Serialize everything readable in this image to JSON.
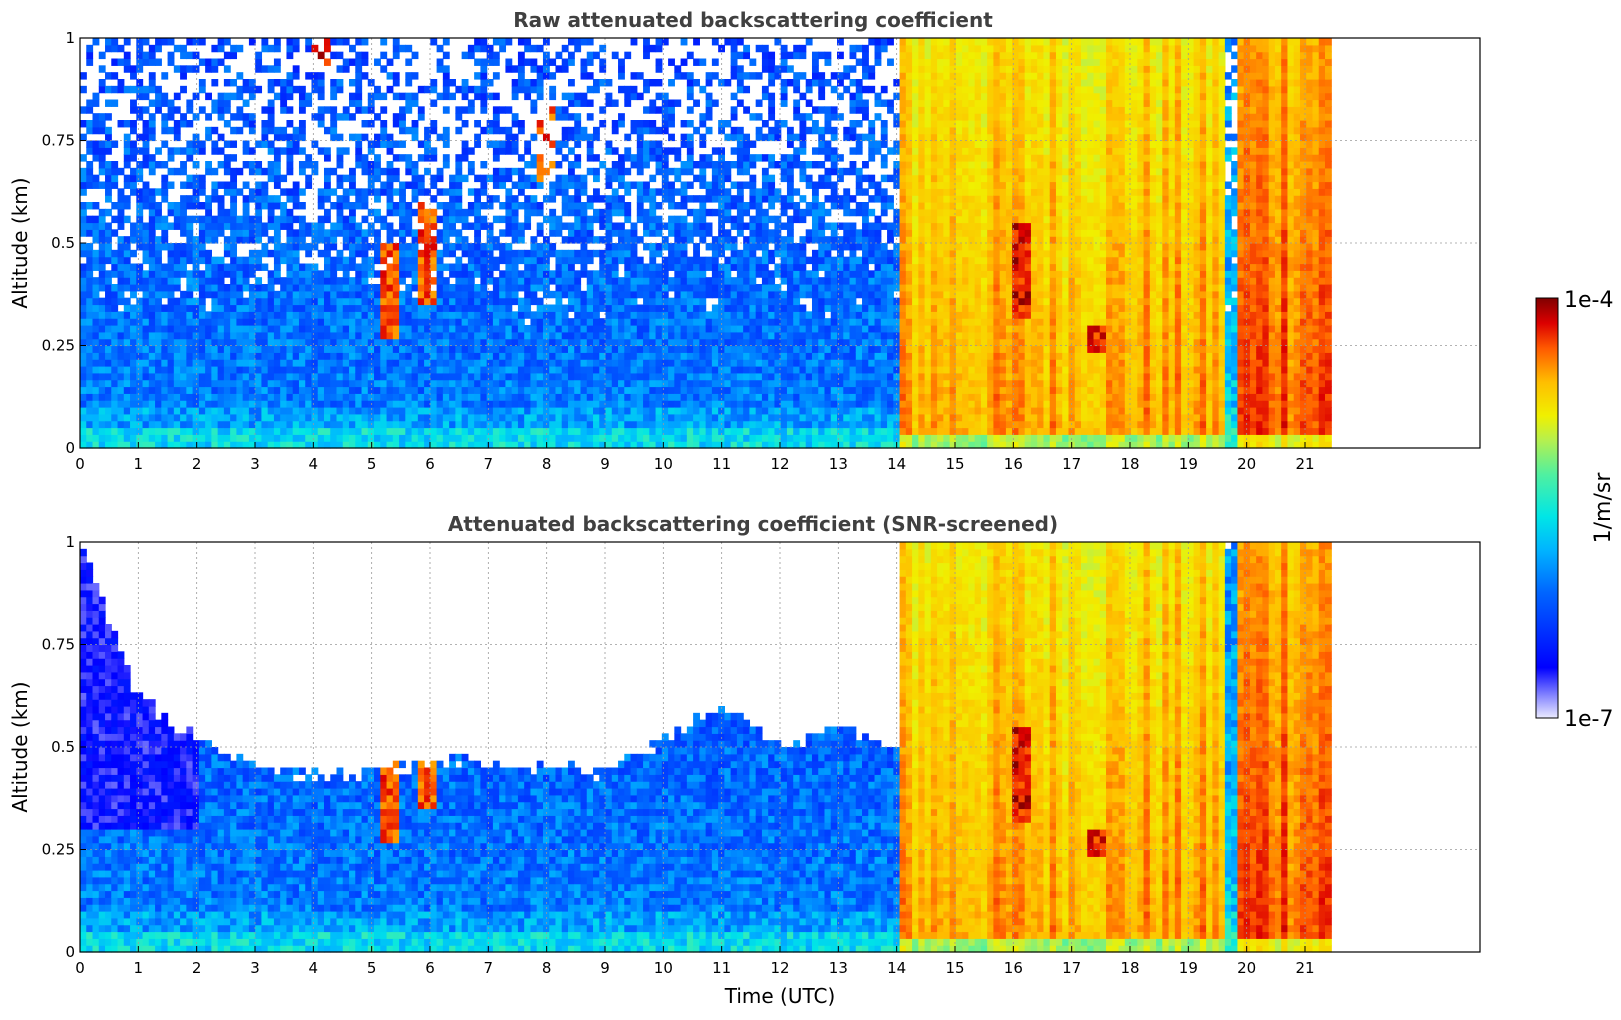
{
  "chart_data": [
    {
      "type": "heatmap",
      "title": "Raw attenuated backscattering coefficient",
      "xlabel": "",
      "ylabel": "Altitude (km)",
      "xlim": [
        0,
        24
      ],
      "ylim": [
        0,
        1
      ],
      "x_ticks": [
        "0",
        "1",
        "2",
        "3",
        "4",
        "5",
        "6",
        "7",
        "8",
        "9",
        "10",
        "11",
        "12",
        "13",
        "14",
        "15",
        "16",
        "17",
        "18",
        "19",
        "20",
        "21"
      ],
      "y_ticks": [
        "0",
        "0.25",
        "0.5",
        "0.75",
        "1"
      ],
      "grid": true,
      "data_end_time": 21.45,
      "time_segments": [
        {
          "start": 0,
          "end": 14.1,
          "regime": "low signal, noisy above 0.3 km",
          "approx_level": "1e-6"
        },
        {
          "start": 14.1,
          "end": 19.6,
          "regime": "strong signal",
          "approx_level": "3e-5"
        },
        {
          "start": 19.6,
          "end": 19.8,
          "regime": "weak band",
          "approx_level": "2e-6"
        },
        {
          "start": 19.8,
          "end": 21.45,
          "regime": "strong signal",
          "approx_level": "5e-5"
        }
      ],
      "features": [
        {
          "time": 4.1,
          "altitude": [
            0.93,
            1.0
          ],
          "level": "1e-4"
        },
        {
          "time": 5.3,
          "altitude": [
            0.27,
            0.5
          ],
          "level": "7e-5"
        },
        {
          "time": 5.95,
          "altitude": [
            0.35,
            0.6
          ],
          "level": "7e-5"
        },
        {
          "time": 8.0,
          "altitude": [
            0.65,
            0.85
          ],
          "level": "7e-5"
        },
        {
          "time": 16.1,
          "altitude": [
            0.32,
            0.55
          ],
          "level": "1e-4"
        },
        {
          "time": 17.4,
          "altitude": [
            0.24,
            0.3
          ],
          "level": "1e-4"
        }
      ]
    },
    {
      "type": "heatmap",
      "title": "Attenuated backscattering coefficient (SNR-screened)",
      "xlabel": "Time (UTC)",
      "ylabel": "Altitude (km)",
      "xlim": [
        0,
        24
      ],
      "ylim": [
        0,
        1
      ],
      "x_ticks": [
        "0",
        "1",
        "2",
        "3",
        "4",
        "5",
        "6",
        "7",
        "8",
        "9",
        "10",
        "11",
        "12",
        "13",
        "14",
        "15",
        "16",
        "17",
        "18",
        "19",
        "20",
        "21"
      ],
      "y_ticks": [
        "0",
        "0.25",
        "0.5",
        "0.75",
        "1"
      ],
      "grid": true,
      "data_end_time": 21.45,
      "screened_top_km": [
        {
          "time": 0,
          "top": 1.0
        },
        {
          "time": 1,
          "top": 0.62
        },
        {
          "time": 2,
          "top": 0.52
        },
        {
          "time": 3,
          "top": 0.46
        },
        {
          "time": 4,
          "top": 0.43
        },
        {
          "time": 5,
          "top": 0.44
        },
        {
          "time": 6,
          "top": 0.47
        },
        {
          "time": 7,
          "top": 0.46
        },
        {
          "time": 8,
          "top": 0.45
        },
        {
          "time": 9,
          "top": 0.44
        },
        {
          "time": 10,
          "top": 0.52
        },
        {
          "time": 11,
          "top": 0.6
        },
        {
          "time": 12,
          "top": 0.5
        },
        {
          "time": 13,
          "top": 0.55
        },
        {
          "time": 14,
          "top": 0.5
        },
        {
          "time": 14.1,
          "top": 1.0
        },
        {
          "time": 21.45,
          "top": 1.0
        }
      ]
    }
  ],
  "colorbar": {
    "label": "1/m/sr",
    "max_label": "1e-4",
    "min_label": "1e-7",
    "colormap": "jet",
    "scale": "log"
  }
}
